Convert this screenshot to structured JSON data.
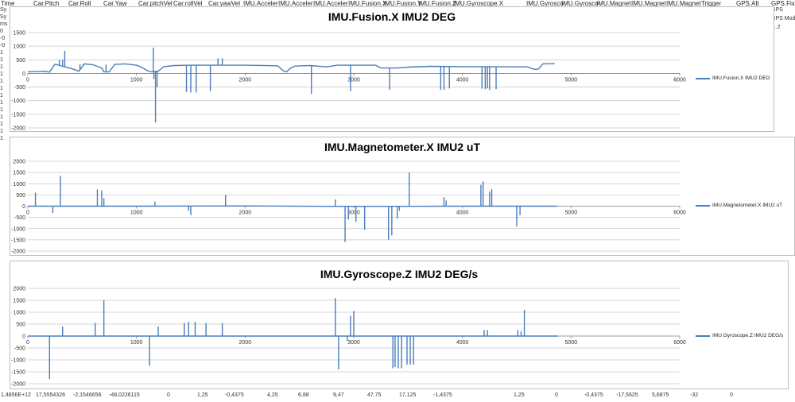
{
  "spreadsheet": {
    "column_headers": [
      {
        "text": "Time",
        "x": 1
      },
      {
        "text": "Car.Pitch",
        "x": 42
      },
      {
        "text": "Car.Roll",
        "x": 86
      },
      {
        "text": "Car.Yaw",
        "x": 130
      },
      {
        "text": "Car.pitchVel",
        "x": 174
      },
      {
        "text": "Car.rollVel",
        "x": 218
      },
      {
        "text": "Car.yawVel",
        "x": 262
      },
      {
        "text": "IMU.Acceler",
        "x": 306
      },
      {
        "text": "IMU.Acceler",
        "x": 350
      },
      {
        "text": "IMU.Acceler",
        "x": 394
      },
      {
        "text": "IMU.Fusion.X",
        "x": 438
      },
      {
        "text": "IMU.Fusion.Y",
        "x": 482
      },
      {
        "text": "IMU.Fusion.Z",
        "x": 526
      },
      {
        "text": "IMU.Gyroscope.X",
        "x": 570
      },
      {
        "text": "IMU.Gyrosco",
        "x": 662
      },
      {
        "text": "IMU.Gyrosco",
        "x": 706
      },
      {
        "text": "IMU.Magnet",
        "x": 750
      },
      {
        "text": "IMU.Magnet",
        "x": 794
      },
      {
        "text": "IMU.Magnet",
        "x": 838
      },
      {
        "text": "Trigger",
        "x": 882
      },
      {
        "text": "GPS.Alt",
        "x": 926
      },
      {
        "text": "GPS.Fix",
        "x": 970
      }
    ],
    "right_cells": [
      "GPS",
      "GPS Mod",
      "0..2"
    ],
    "left_cells": [
      "Sy",
      "Sy",
      "ms",
      "0",
      "-0",
      "-0",
      "1",
      "1",
      "1",
      "1",
      "1",
      "1",
      "1",
      "1",
      "1",
      "1",
      "1",
      "1",
      "1"
    ],
    "bottom_cells": [
      {
        "text": "1,4856E+12",
        "x": 1
      },
      {
        "text": "17,5554326",
        "x": 45
      },
      {
        "text": "-2,1546656",
        "x": 92
      },
      {
        "text": "-48,0226115",
        "x": 137
      },
      {
        "text": "0",
        "x": 210
      },
      {
        "text": "1,25",
        "x": 248
      },
      {
        "text": "-0,4375",
        "x": 283
      },
      {
        "text": "4,25",
        "x": 336
      },
      {
        "text": "6,88",
        "x": 375
      },
      {
        "text": "9,47",
        "x": 419
      },
      {
        "text": "47,75",
        "x": 462
      },
      {
        "text": "17,125",
        "x": 502
      },
      {
        "text": "-1,4375",
        "x": 545
      },
      {
        "text": "1,25",
        "x": 646
      },
      {
        "text": "0",
        "x": 698
      },
      {
        "text": "-0,4375",
        "x": 735
      },
      {
        "text": "-17,5625",
        "x": 775
      },
      {
        "text": "5,6875",
        "x": 820
      },
      {
        "text": "-32",
        "x": 868
      },
      {
        "text": "0",
        "x": 918
      }
    ]
  },
  "charts": [
    {
      "id": "fusion",
      "title": "IMU.Fusion.X IMU2 DEG",
      "legend": "IMU.Fusion.X IMU2 DEG",
      "color": "#4a7ebb"
    },
    {
      "id": "magnet",
      "title": "IMU.Magnetometer.X IMU2 uT",
      "legend": "IMU.Magnetometer.X IMU2 uT",
      "color": "#4a7ebb"
    },
    {
      "id": "gyro",
      "title": "IMU.Gyroscope.Z IMU2 DEG/s",
      "legend": "IMU.Gyroscope.Z IMU2 DEG/s",
      "color": "#4a7ebb"
    }
  ],
  "chart_data": [
    {
      "type": "line",
      "title": "IMU.Fusion.X IMU2 DEG",
      "series": [
        {
          "name": "IMU.Fusion.X IMU2 DEG"
        }
      ],
      "xlim": [
        0,
        6000
      ],
      "ylim": [
        -2000,
        1500
      ],
      "xticks": [
        0,
        1000,
        2000,
        3000,
        4000,
        5000,
        6000
      ],
      "yticks": [
        1500,
        1000,
        500,
        0,
        -500,
        -1000,
        -1500,
        -2000
      ],
      "baseline": [
        [
          0,
          60
        ],
        [
          150,
          80
        ],
        [
          200,
          50
        ],
        [
          250,
          340
        ],
        [
          350,
          230
        ],
        [
          430,
          140
        ],
        [
          470,
          80
        ],
        [
          520,
          350
        ],
        [
          600,
          320
        ],
        [
          680,
          200
        ],
        [
          700,
          60
        ],
        [
          750,
          60
        ],
        [
          800,
          330
        ],
        [
          900,
          350
        ],
        [
          1000,
          300
        ],
        [
          1050,
          220
        ],
        [
          1100,
          100
        ],
        [
          1140,
          60
        ],
        [
          1180,
          80
        ],
        [
          1200,
          80
        ],
        [
          1250,
          250
        ],
        [
          1350,
          290
        ],
        [
          1500,
          300
        ],
        [
          2000,
          300
        ],
        [
          2300,
          280
        ],
        [
          2350,
          100
        ],
        [
          2380,
          60
        ],
        [
          2420,
          200
        ],
        [
          2460,
          270
        ],
        [
          2600,
          290
        ],
        [
          2750,
          240
        ],
        [
          2850,
          300
        ],
        [
          3200,
          300
        ],
        [
          3250,
          200
        ],
        [
          3400,
          200
        ],
        [
          3500,
          230
        ],
        [
          3700,
          260
        ],
        [
          4000,
          250
        ],
        [
          4600,
          240
        ],
        [
          4660,
          150
        ],
        [
          4700,
          160
        ],
        [
          4740,
          350
        ],
        [
          4850,
          360
        ]
      ],
      "spikes": [
        [
          290,
          490
        ],
        [
          320,
          500
        ],
        [
          340,
          830
        ],
        [
          480,
          340
        ],
        [
          510,
          340
        ],
        [
          720,
          330
        ],
        [
          1155,
          950
        ],
        [
          1160,
          -200
        ],
        [
          1175,
          -1800
        ],
        [
          1190,
          -500
        ],
        [
          1460,
          -680
        ],
        [
          1500,
          -700
        ],
        [
          1550,
          -700
        ],
        [
          1680,
          -650
        ],
        [
          1750,
          550
        ],
        [
          1790,
          550
        ],
        [
          2610,
          -750
        ],
        [
          2970,
          -650
        ],
        [
          3330,
          -600
        ],
        [
          3800,
          -600
        ],
        [
          3830,
          -600
        ],
        [
          3880,
          -550
        ],
        [
          4180,
          -560
        ],
        [
          4210,
          -580
        ],
        [
          4230,
          -550
        ],
        [
          4250,
          -610
        ],
        [
          4310,
          -580
        ]
      ]
    },
    {
      "type": "line",
      "title": "IMU.Magnetometer.X IMU2 uT",
      "series": [
        {
          "name": "IMU.Magnetometer.X IMU2 uT"
        }
      ],
      "xlim": [
        0,
        6000
      ],
      "ylim": [
        -2000,
        2000
      ],
      "xticks": [
        0,
        1000,
        2000,
        3000,
        4000,
        5000,
        6000
      ],
      "yticks": [
        2000,
        1500,
        1000,
        500,
        0,
        -500,
        -1000,
        -1500,
        -2000
      ],
      "baseline": [
        [
          0,
          0
        ],
        [
          1000,
          0
        ],
        [
          2000,
          10
        ],
        [
          3000,
          -10
        ],
        [
          4000,
          0
        ],
        [
          4870,
          0
        ]
      ],
      "spikes": [
        [
          70,
          600
        ],
        [
          230,
          -300
        ],
        [
          300,
          1350
        ],
        [
          640,
          750
        ],
        [
          680,
          700
        ],
        [
          700,
          350
        ],
        [
          1170,
          200
        ],
        [
          1480,
          -200
        ],
        [
          1500,
          -400
        ],
        [
          1820,
          500
        ],
        [
          2830,
          300
        ],
        [
          2920,
          -1600
        ],
        [
          2950,
          -600
        ],
        [
          3020,
          -700
        ],
        [
          3100,
          -1050
        ],
        [
          3320,
          -1500
        ],
        [
          3350,
          -1300
        ],
        [
          3400,
          -550
        ],
        [
          3420,
          -200
        ],
        [
          3510,
          1500
        ],
        [
          3830,
          400
        ],
        [
          3850,
          250
        ],
        [
          4170,
          950
        ],
        [
          4190,
          1100
        ],
        [
          4250,
          650
        ],
        [
          4270,
          750
        ],
        [
          4500,
          -900
        ],
        [
          4530,
          -400
        ]
      ]
    },
    {
      "type": "line",
      "title": "IMU.Gyroscope.Z IMU2 DEG/s",
      "series": [
        {
          "name": "IMU.Gyroscope.Z IMU2 DEG/s"
        }
      ],
      "xlim": [
        0,
        6000
      ],
      "ylim": [
        -2000,
        2000
      ],
      "xticks": [
        0,
        1000,
        2000,
        3000,
        4000,
        5000,
        6000
      ],
      "yticks": [
        2000,
        1500,
        1000,
        500,
        0,
        -500,
        -1000,
        -1500,
        -2000
      ],
      "baseline": [
        [
          0,
          0
        ],
        [
          1000,
          0
        ],
        [
          2000,
          0
        ],
        [
          3000,
          0
        ],
        [
          4000,
          0
        ],
        [
          4880,
          0
        ]
      ],
      "spikes": [
        [
          200,
          -1800
        ],
        [
          320,
          400
        ],
        [
          620,
          550
        ],
        [
          700,
          1500
        ],
        [
          1120,
          -1250
        ],
        [
          1200,
          400
        ],
        [
          1440,
          550
        ],
        [
          1480,
          600
        ],
        [
          1540,
          600
        ],
        [
          1640,
          550
        ],
        [
          1790,
          550
        ],
        [
          2830,
          1600
        ],
        [
          2860,
          -1400
        ],
        [
          2940,
          -200
        ],
        [
          2970,
          850
        ],
        [
          3000,
          1050
        ],
        [
          3360,
          -1350
        ],
        [
          3380,
          -1300
        ],
        [
          3410,
          -1350
        ],
        [
          3440,
          -1350
        ],
        [
          3490,
          -1200
        ],
        [
          3520,
          -1200
        ],
        [
          3550,
          -1200
        ],
        [
          4200,
          250
        ],
        [
          4230,
          250
        ],
        [
          4510,
          250
        ],
        [
          4540,
          200
        ],
        [
          4570,
          1100
        ]
      ]
    }
  ]
}
